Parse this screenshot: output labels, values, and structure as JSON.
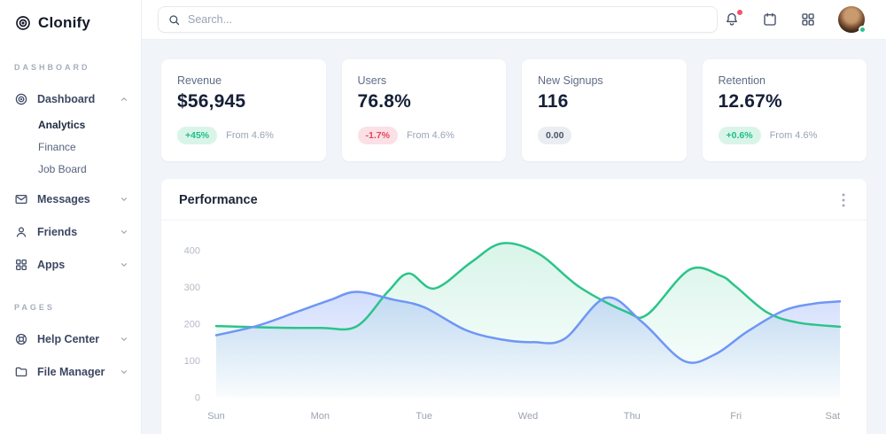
{
  "brand": {
    "name": "Clonify"
  },
  "topbar": {
    "search_placeholder": "Search...",
    "icons": [
      "search-icon",
      "bell-icon",
      "calendar-icon",
      "apps-grid-icon"
    ],
    "notification_dot_color": "#f4516c",
    "avatar_status_color": "#2bc48a"
  },
  "sidebar": {
    "sections": [
      {
        "label": "DASHBOARD"
      },
      {
        "label": "PAGES"
      }
    ],
    "items": [
      {
        "label": "Dashboard",
        "icon": "target-icon",
        "state": "expanded",
        "children": [
          "Analytics",
          "Finance",
          "Job Board"
        ],
        "active_child": "Analytics"
      },
      {
        "label": "Messages",
        "icon": "envelope-icon",
        "state": "collapsed"
      },
      {
        "label": "Friends",
        "icon": "person-icon",
        "state": "collapsed"
      },
      {
        "label": "Apps",
        "icon": "grid-icon",
        "state": "collapsed"
      }
    ],
    "pages": [
      {
        "label": "Help Center",
        "icon": "lifebuoy-icon",
        "state": "collapsed"
      },
      {
        "label": "File Manager",
        "icon": "folder-icon",
        "state": "collapsed"
      }
    ]
  },
  "cards": [
    {
      "title": "Revenue",
      "value": "$56,945",
      "badge": "+45%",
      "badge_type": "positive",
      "note": "From 4.6%"
    },
    {
      "title": "Users",
      "value": "76.8%",
      "badge": "-1.7%",
      "badge_type": "negative",
      "note": "From 4.6%"
    },
    {
      "title": "New Signups",
      "value": "116",
      "badge": "0.00",
      "badge_type": "neutral",
      "note": ""
    },
    {
      "title": "Retention",
      "value": "12.67%",
      "badge": "+0.6%",
      "badge_type": "positive",
      "note": "From 4.6%"
    }
  ],
  "panel": {
    "title": "Performance"
  },
  "colors": {
    "positive": "#1fbf83",
    "positive_bg": "#d9f5e9",
    "negative": "#e5475d",
    "negative_bg": "#fbe0e5",
    "neutral": "#4a5468",
    "neutral_bg": "#eaedf2",
    "green_line": "#2bc48a",
    "blue_line": "#6e96f6",
    "content_bg": "#f1f4f8"
  },
  "chart_data": {
    "type": "area",
    "title": "Performance",
    "x_unit": "day-index (0 = Sun ... 6 = Sat, fractional = intra-day curve shape)",
    "x_labels": [
      "Sun",
      "Mon",
      "Tue",
      "Wed",
      "Thu",
      "Fri",
      "Sat"
    ],
    "y_ticks": [
      400,
      300,
      200,
      100,
      0
    ],
    "ylim": [
      0,
      440
    ],
    "grid": false,
    "legend": false,
    "series": [
      {
        "name": "green",
        "color": "#2bc48a",
        "points": [
          [
            0,
            195
          ],
          [
            0.5,
            191
          ],
          [
            1.0,
            190
          ],
          [
            1.35,
            194
          ],
          [
            1.65,
            288
          ],
          [
            1.85,
            338
          ],
          [
            2.1,
            297
          ],
          [
            2.45,
            368
          ],
          [
            2.75,
            420
          ],
          [
            3.1,
            392
          ],
          [
            3.5,
            300
          ],
          [
            3.95,
            233
          ],
          [
            4.15,
            227
          ],
          [
            4.55,
            348
          ],
          [
            4.85,
            332
          ],
          [
            5.0,
            302
          ],
          [
            5.3,
            232
          ],
          [
            5.6,
            204
          ],
          [
            6,
            193
          ]
        ]
      },
      {
        "name": "blue",
        "color": "#6e96f6",
        "points": [
          [
            0,
            170
          ],
          [
            0.4,
            196
          ],
          [
            0.8,
            236
          ],
          [
            1.1,
            266
          ],
          [
            1.35,
            288
          ],
          [
            1.7,
            267
          ],
          [
            2,
            246
          ],
          [
            2.4,
            184
          ],
          [
            2.75,
            158
          ],
          [
            3.05,
            151
          ],
          [
            3.35,
            160
          ],
          [
            3.75,
            272
          ],
          [
            4.1,
            205
          ],
          [
            4.5,
            100
          ],
          [
            4.8,
            118
          ],
          [
            5.1,
            178
          ],
          [
            5.45,
            236
          ],
          [
            5.75,
            256
          ],
          [
            6,
            262
          ]
        ]
      }
    ]
  }
}
